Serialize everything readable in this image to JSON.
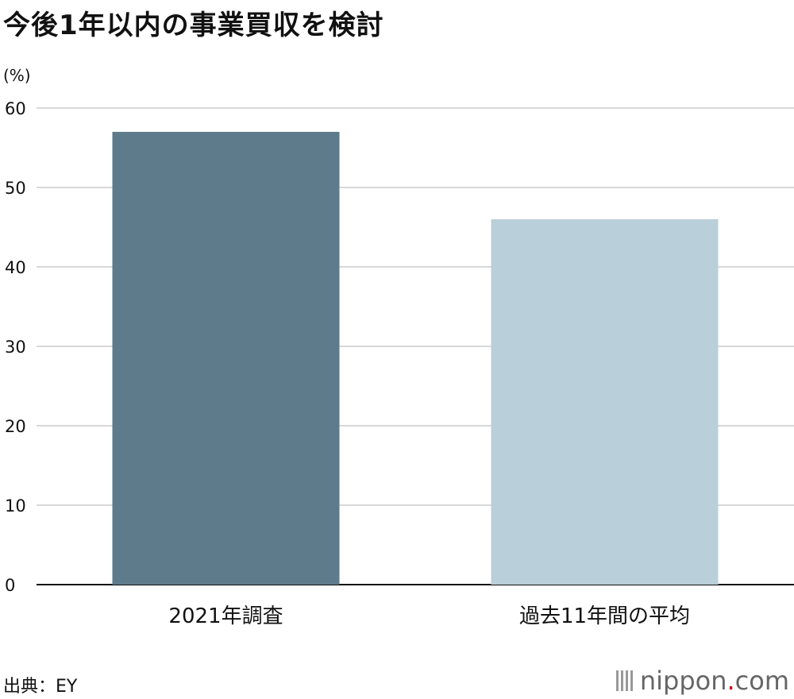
{
  "title": "今後1年以内の事業買収を検討",
  "source": "出典：EY",
  "brand": {
    "name": "nippon",
    "dot": ".",
    "tld": "com"
  },
  "colors": {
    "bar1": "#5d7b8b",
    "bar2": "#b9cfd9",
    "grid": "#cccccc",
    "axis": "#111111"
  },
  "chart_data": {
    "type": "bar",
    "title": "今後1年以内の事業買収を検討",
    "unit_label": "(%)",
    "categories": [
      "2021年調査",
      "過去11年間の平均"
    ],
    "values": [
      57,
      46
    ],
    "ylim": [
      0,
      60
    ],
    "yticks": [
      0,
      10,
      20,
      30,
      40,
      50,
      60
    ],
    "grid": true
  }
}
